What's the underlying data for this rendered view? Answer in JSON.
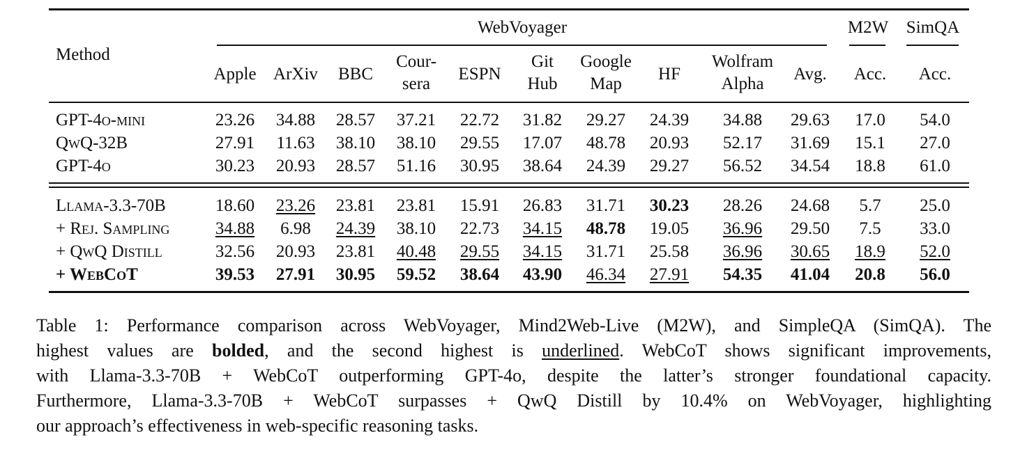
{
  "table": {
    "method_header": "Method",
    "group_headers": {
      "webvoyager": "WebVoyager",
      "m2w": "M2W",
      "simqa": "SimQA"
    },
    "columns": [
      {
        "line1": "Apple",
        "line2": ""
      },
      {
        "line1": "ArXiv",
        "line2": ""
      },
      {
        "line1": "BBC",
        "line2": ""
      },
      {
        "line1": "Cour-",
        "line2": "sera"
      },
      {
        "line1": "ESPN",
        "line2": ""
      },
      {
        "line1": "Git",
        "line2": "Hub"
      },
      {
        "line1": "Google",
        "line2": "Map"
      },
      {
        "line1": "HF",
        "line2": ""
      },
      {
        "line1": "Wolfram",
        "line2": "Alpha"
      },
      {
        "line1": "Avg.",
        "line2": ""
      },
      {
        "line1": "Acc.",
        "line2": ""
      },
      {
        "line1": "Acc.",
        "line2": ""
      }
    ],
    "rows": [
      {
        "method": "GPT-4o-mini",
        "style": "sc",
        "values": [
          "23.26",
          "34.88",
          "28.57",
          "37.21",
          "22.72",
          "31.82",
          "29.27",
          "24.39",
          "34.88",
          "29.63",
          "17.0",
          "54.0"
        ],
        "bold": [],
        "underline": []
      },
      {
        "method": "QwQ-32B",
        "style": "sc",
        "values": [
          "27.91",
          "11.63",
          "38.10",
          "38.10",
          "29.55",
          "17.07",
          "48.78",
          "20.93",
          "52.17",
          "31.69",
          "15.1",
          "27.0"
        ],
        "bold": [],
        "underline": []
      },
      {
        "method": "GPT-4o",
        "style": "sc",
        "values": [
          "30.23",
          "20.93",
          "28.57",
          "51.16",
          "30.95",
          "38.64",
          "24.39",
          "29.27",
          "56.52",
          "34.54",
          "18.8",
          "61.0"
        ],
        "bold": [],
        "underline": []
      },
      {
        "method": "Llama-3.3-70B",
        "style": "sc",
        "values": [
          "18.60",
          "23.26",
          "23.81",
          "23.81",
          "15.91",
          "26.83",
          "31.71",
          "30.23",
          "28.26",
          "24.68",
          "5.7",
          "25.0"
        ],
        "bold": [
          7
        ],
        "underline": [
          1
        ]
      },
      {
        "method": "+ Rej. Sampling",
        "style": "sc",
        "values": [
          "34.88",
          "6.98",
          "24.39",
          "38.10",
          "22.73",
          "34.15",
          "48.78",
          "19.05",
          "36.96",
          "29.50",
          "7.5",
          "33.0"
        ],
        "bold": [
          6
        ],
        "underline": [
          0,
          2,
          5,
          8
        ]
      },
      {
        "method": "+ QwQ Distill",
        "style": "sc",
        "values": [
          "32.56",
          "20.93",
          "23.81",
          "40.48",
          "29.55",
          "34.15",
          "31.71",
          "25.58",
          "36.96",
          "30.65",
          "18.9",
          "52.0"
        ],
        "bold": [],
        "underline": [
          3,
          4,
          5,
          8,
          9,
          10,
          11
        ]
      },
      {
        "method": "+ WebCoT",
        "style": "sc b",
        "values": [
          "39.53",
          "27.91",
          "30.95",
          "59.52",
          "38.64",
          "43.90",
          "46.34",
          "27.91",
          "54.35",
          "41.04",
          "20.8",
          "56.0"
        ],
        "bold": [
          0,
          1,
          2,
          3,
          4,
          5,
          8,
          9,
          10,
          11
        ],
        "underline": [
          6,
          7
        ]
      }
    ]
  },
  "caption": {
    "line1": "Table 1: Performance comparison across WebVoyager, Mind2Web-Live (M2W), and SimpleQA (SimQA). The",
    "line2_pre": "highest values are ",
    "line2_bold": "bolded",
    "line2_mid": ", and the second highest is ",
    "line2_under": "underlined",
    "line2_post": ".  WebCoT shows significant improvements,",
    "line3": "with Llama-3.3-70B + WebCoT outperforming GPT-4o, despite the latter’s stronger foundational capacity.",
    "line4": "Furthermore, Llama-3.3-70B + WebCoT surpasses + QwQ Distill by 10.4% on WebVoyager, highlighting",
    "line5": "our approach’s effectiveness in web-specific reasoning tasks."
  }
}
